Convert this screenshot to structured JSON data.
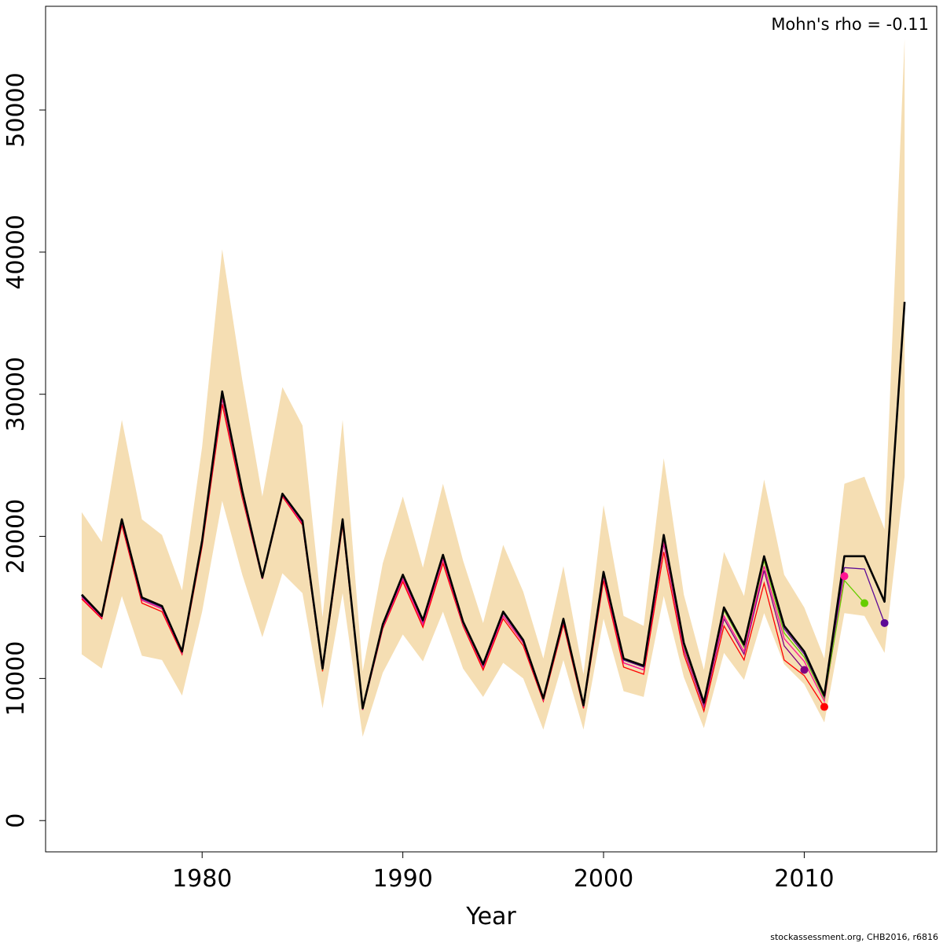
{
  "chart_data": {
    "type": "line",
    "title": "",
    "xlabel": "Year",
    "ylabel": "",
    "xlim": [
      1972.2,
      2016.6
    ],
    "ylim": [
      -2200,
      57300
    ],
    "x_ticks": [
      1980,
      1990,
      2000,
      2010
    ],
    "y_ticks": [
      0,
      10000,
      20000,
      30000,
      40000,
      50000
    ],
    "grid": false,
    "annotation": "Mohn's rho = -0.11",
    "credit": "stockassessment.org, CHB2016, r6816",
    "band_color": "#f5deb3",
    "main_series": {
      "color": "#000000",
      "x": [
        1974,
        1975,
        1976,
        1977,
        1978,
        1979,
        1980,
        1981,
        1982,
        1983,
        1984,
        1985,
        1986,
        1987,
        1988,
        1989,
        1990,
        1991,
        1992,
        1993,
        1994,
        1995,
        1996,
        1997,
        1998,
        1999,
        2000,
        2001,
        2002,
        2003,
        2004,
        2005,
        2006,
        2007,
        2008,
        2009,
        2010,
        2011,
        2012,
        2013,
        2014,
        2015
      ],
      "values": [
        15900,
        14400,
        21200,
        15700,
        15100,
        11900,
        19700,
        30200,
        23200,
        17100,
        23000,
        21100,
        10700,
        21200,
        7900,
        13800,
        17300,
        14100,
        18700,
        14000,
        11000,
        14700,
        12700,
        8600,
        14200,
        8100,
        17500,
        11400,
        10900,
        20100,
        12500,
        8300,
        15000,
        12400,
        18600,
        13700,
        11900,
        8800,
        18600,
        18600,
        15400,
        36500
      ],
      "lower": [
        11700,
        10700,
        15800,
        11600,
        11300,
        8800,
        14700,
        22500,
        17300,
        12900,
        17400,
        16000,
        7900,
        16000,
        5900,
        10400,
        13100,
        11200,
        14700,
        10700,
        8700,
        11100,
        10000,
        6400,
        11300,
        6400,
        14200,
        9100,
        8700,
        15800,
        10100,
        6500,
        11800,
        9900,
        14600,
        11000,
        9600,
        6900,
        14600,
        14400,
        11800,
        24200
      ],
      "upper": [
        21700,
        19600,
        28200,
        21200,
        20100,
        16200,
        26300,
        40200,
        31000,
        22800,
        30500,
        27800,
        14300,
        28200,
        10500,
        18100,
        22800,
        17800,
        23700,
        18300,
        13900,
        19400,
        16100,
        11400,
        17900,
        10300,
        22200,
        14400,
        13700,
        25500,
        15900,
        10600,
        18900,
        15800,
        24000,
        17300,
        15000,
        11400,
        23700,
        24200,
        20500,
        55000
      ]
    },
    "series": [
      {
        "name": "",
        "color": "#ff0000",
        "x": [
          1974,
          1975,
          1976,
          1977,
          1978,
          1979,
          1980,
          1981,
          1982,
          1983,
          1984,
          1985,
          1986,
          1987,
          1988,
          1989,
          1990,
          1991,
          1992,
          1993,
          1994,
          1995,
          1996,
          1997,
          1998,
          1999,
          2000,
          2001,
          2002,
          2003,
          2004,
          2005,
          2006,
          2007,
          2008,
          2009,
          2010,
          2011
        ],
        "values": [
          15600,
          14200,
          20800,
          15300,
          14700,
          11700,
          19300,
          29300,
          22700,
          17000,
          22800,
          20800,
          10500,
          20800,
          7800,
          13500,
          16800,
          13600,
          18100,
          13700,
          10600,
          14200,
          12300,
          8400,
          13800,
          7900,
          16900,
          10800,
          10300,
          18900,
          11700,
          7700,
          13700,
          11300,
          16700,
          11300,
          10200,
          8000
        ],
        "endpoint": [
          2011,
          8000
        ]
      },
      {
        "name": "",
        "color": "#800080",
        "x": [
          1974,
          1975,
          1976,
          1977,
          1978,
          1979,
          1980,
          1981,
          1982,
          1983,
          1984,
          1985,
          1986,
          1987,
          1988,
          1989,
          1990,
          1991,
          1992,
          1993,
          1994,
          1995,
          1996,
          1997,
          1998,
          1999,
          2000,
          2001,
          2002,
          2003,
          2004,
          2005,
          2006,
          2007,
          2008,
          2009,
          2010
        ],
        "values": [
          15700,
          14300,
          21000,
          15500,
          14900,
          11800,
          19500,
          29700,
          22900,
          17000,
          22900,
          20900,
          10600,
          21000,
          7800,
          13600,
          17000,
          13800,
          18400,
          13800,
          10800,
          14400,
          12500,
          8500,
          14000,
          8000,
          17200,
          11100,
          10600,
          19500,
          12000,
          8000,
          14200,
          11700,
          17600,
          12300,
          10600
        ],
        "endpoint": [
          2010,
          10600
        ]
      },
      {
        "name": "",
        "color": "#ff1493",
        "x": [
          1974,
          1975,
          1976,
          1977,
          1978,
          1979,
          1980,
          1981,
          1982,
          1983,
          1984,
          1985,
          1986,
          1987,
          1988,
          1989,
          1990,
          1991,
          1992,
          1993,
          1994,
          1995,
          1996,
          1997,
          1998,
          1999,
          2000,
          2001,
          2002,
          2003,
          2004,
          2005,
          2006,
          2007,
          2008,
          2009,
          2010,
          2011,
          2012
        ],
        "values": [
          15700,
          14300,
          21000,
          15500,
          14900,
          11800,
          19500,
          29800,
          22900,
          17000,
          22900,
          20900,
          10600,
          21000,
          7800,
          13600,
          17000,
          13800,
          18400,
          13800,
          10800,
          14400,
          12500,
          8500,
          14000,
          8000,
          17200,
          11100,
          10600,
          19600,
          12100,
          8100,
          14400,
          11900,
          17900,
          12800,
          11200,
          8400,
          17200
        ],
        "endpoint": [
          2012,
          17200
        ]
      },
      {
        "name": "",
        "color": "#66cd00",
        "x": [
          1974,
          1975,
          1976,
          1977,
          1978,
          1979,
          1980,
          1981,
          1982,
          1983,
          1984,
          1985,
          1986,
          1987,
          1988,
          1989,
          1990,
          1991,
          1992,
          1993,
          1994,
          1995,
          1996,
          1997,
          1998,
          1999,
          2000,
          2001,
          2002,
          2003,
          2004,
          2005,
          2006,
          2007,
          2008,
          2009,
          2010,
          2011,
          2012,
          2013
        ],
        "values": [
          15800,
          14400,
          21100,
          15600,
          15000,
          11900,
          19600,
          30000,
          23000,
          17100,
          23000,
          21000,
          10600,
          21100,
          7900,
          13700,
          17200,
          14000,
          18600,
          13900,
          10900,
          14600,
          12600,
          8600,
          14100,
          8100,
          17400,
          11300,
          10800,
          19900,
          12300,
          8200,
          14800,
          12200,
          18300,
          13200,
          11500,
          8600,
          16900,
          15300
        ],
        "endpoint": [
          2013,
          15300
        ]
      },
      {
        "name": "",
        "color": "#5d0a96",
        "x": [
          1974,
          1975,
          1976,
          1977,
          1978,
          1979,
          1980,
          1981,
          1982,
          1983,
          1984,
          1985,
          1986,
          1987,
          1988,
          1989,
          1990,
          1991,
          1992,
          1993,
          1994,
          1995,
          1996,
          1997,
          1998,
          1999,
          2000,
          2001,
          2002,
          2003,
          2004,
          2005,
          2006,
          2007,
          2008,
          2009,
          2010,
          2011,
          2012,
          2013,
          2014
        ],
        "values": [
          15800,
          14400,
          21100,
          15600,
          15000,
          11900,
          19600,
          30100,
          23100,
          17100,
          23000,
          21000,
          10700,
          21100,
          7900,
          13700,
          17200,
          14000,
          18600,
          14000,
          10900,
          14600,
          12600,
          8600,
          14100,
          8100,
          17400,
          11300,
          10800,
          20000,
          12400,
          8200,
          14900,
          12300,
          18500,
          13500,
          11700,
          8700,
          17800,
          17700,
          13900
        ],
        "endpoint": [
          2014,
          13900
        ]
      }
    ]
  }
}
